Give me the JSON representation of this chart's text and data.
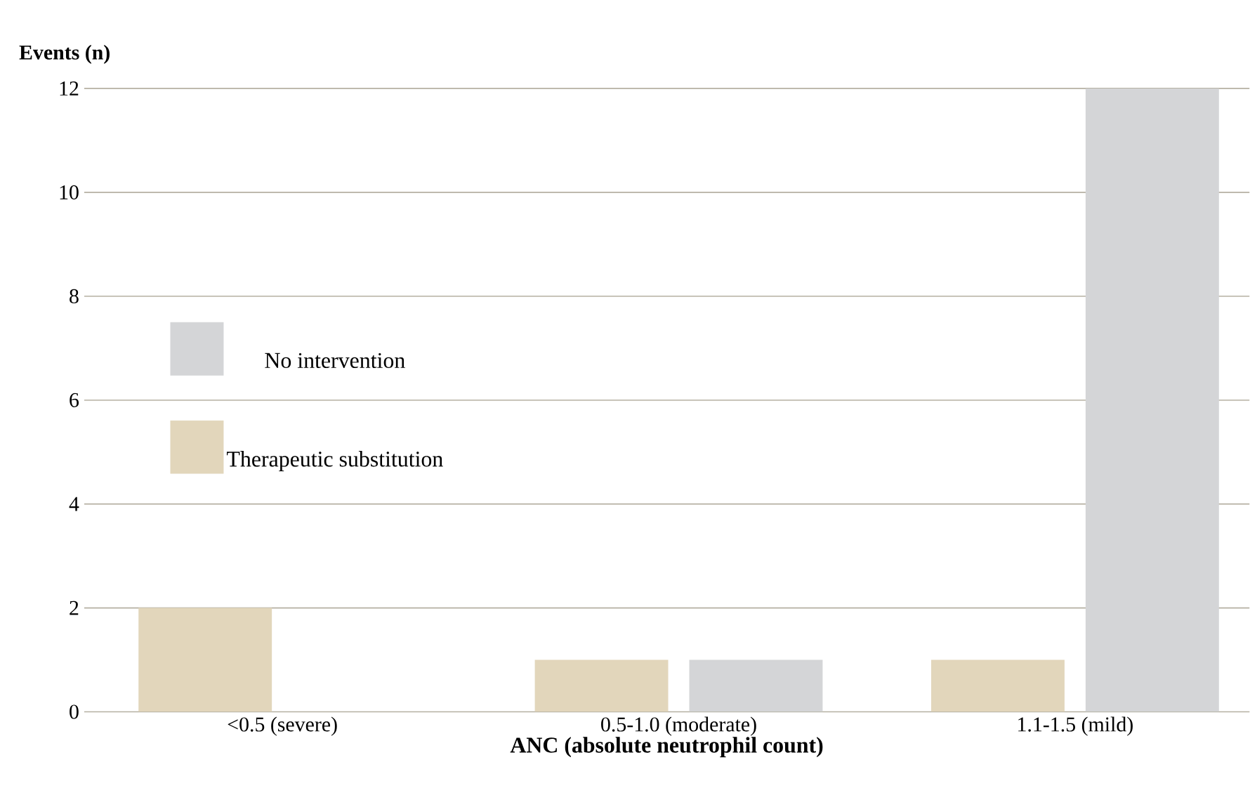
{
  "chart_data": {
    "type": "bar",
    "xlabel": "ANC (absolute neutrophil count)",
    "ylabel": "Events (n)",
    "categories": [
      "<0.5 (severe)",
      "0.5-1.0 (moderate)",
      "1.1-1.5 (mild)"
    ],
    "series": [
      {
        "name": "Therapeutic substitution",
        "color": "#e2d6bb",
        "values": [
          2,
          1,
          1
        ]
      },
      {
        "name": "No intervention",
        "color": "#d4d5d7",
        "values": [
          0,
          1,
          12
        ]
      }
    ],
    "ylim": [
      0,
      12
    ],
    "yticks": [
      0,
      2,
      4,
      6,
      8,
      10,
      12
    ],
    "grid": "y",
    "legend": "left"
  }
}
